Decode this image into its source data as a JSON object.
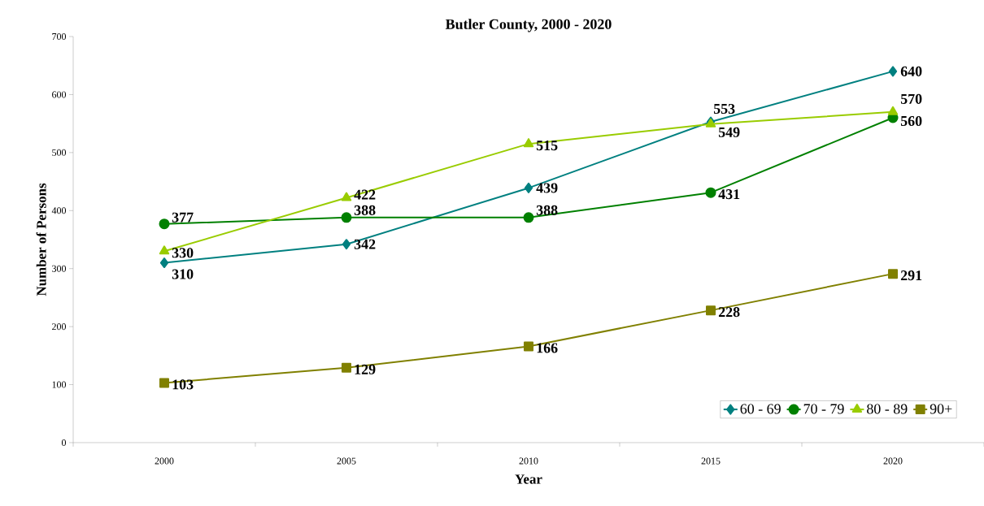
{
  "chart_data": {
    "type": "line",
    "title": "Butler County, 2000 - 2020",
    "xlabel": "Year",
    "ylabel": "Number of Persons",
    "categories": [
      "2000",
      "2005",
      "2010",
      "2015",
      "2020"
    ],
    "series": [
      {
        "name": "60 - 69",
        "color": "#008080",
        "marker": "diamond",
        "values": [
          310,
          342,
          439,
          553,
          640
        ]
      },
      {
        "name": "70 - 79",
        "color": "#008000",
        "marker": "circle",
        "values": [
          377,
          388,
          388,
          431,
          560
        ]
      },
      {
        "name": "80 - 89",
        "color": "#99cc00",
        "marker": "triangle",
        "values": [
          330,
          422,
          515,
          549,
          570
        ]
      },
      {
        "name": "90+",
        "color": "#808000",
        "marker": "square",
        "values": [
          103,
          129,
          166,
          228,
          291
        ]
      }
    ],
    "ylim": [
      0,
      700
    ],
    "yticks": [
      0,
      100,
      200,
      300,
      400,
      500,
      600,
      700
    ],
    "grid": false,
    "legend": "bottom right",
    "data_labels": true
  }
}
